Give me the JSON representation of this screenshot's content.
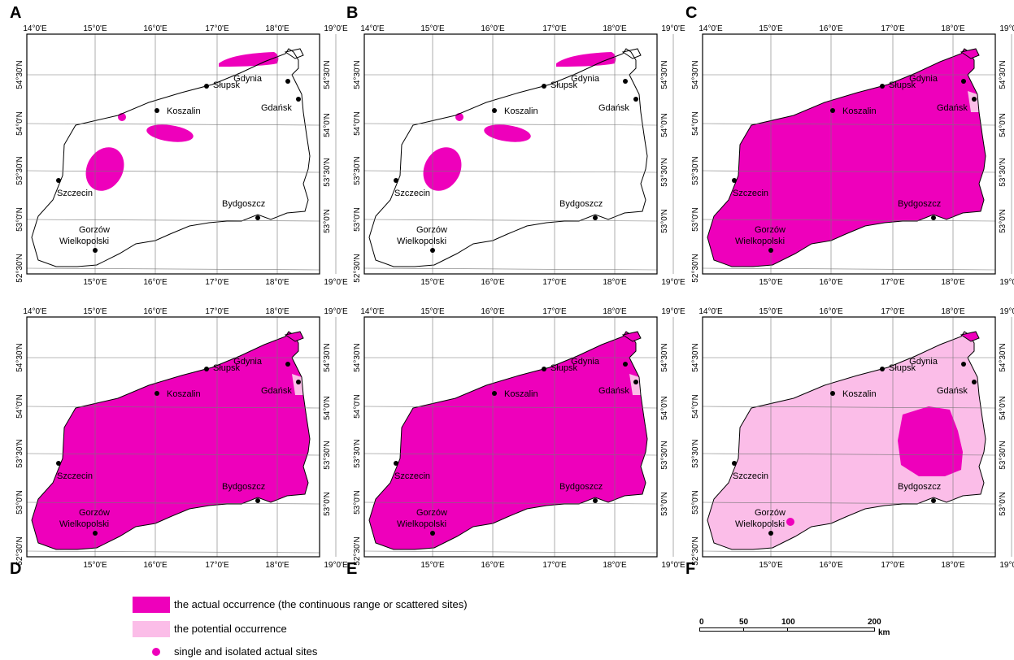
{
  "colors": {
    "actual": "#ee00bb",
    "potential": "#fbbde8",
    "outline": "#000000",
    "frame": "#000000",
    "grid": "#777777"
  },
  "panels": [
    {
      "letter": "A",
      "mode": "blobs"
    },
    {
      "letter": "B",
      "mode": "blobs"
    },
    {
      "letter": "C",
      "mode": "full"
    },
    {
      "letter": "D",
      "mode": "full"
    },
    {
      "letter": "E",
      "mode": "full"
    },
    {
      "letter": "F",
      "mode": "potential"
    }
  ],
  "lon_ticks": [
    "14°0'E",
    "15°0'E",
    "16°0'E",
    "17°0'E",
    "18°0'E",
    "19°0'E"
  ],
  "lat_ticks": [
    "54°30'N",
    "54°0'N",
    "53°30'N",
    "53°0'N",
    "52°30'N"
  ],
  "cities": [
    {
      "name": "Gdynia"
    },
    {
      "name": "Słupsk"
    },
    {
      "name": "Gdańsk"
    },
    {
      "name": "Koszalin"
    },
    {
      "name": "Szczecin"
    },
    {
      "name": "Bydgoszcz"
    },
    {
      "name": "Gorzów"
    },
    {
      "name": "Wielkopolski"
    }
  ],
  "legend": {
    "actual_label": "the actual occurrence (the continuous range or scattered sites)",
    "potential_label": "the potential occurrence",
    "single_label": "single and isolated actual sites"
  },
  "scale": {
    "labels": [
      "0",
      "50",
      "100",
      "200"
    ],
    "unit": "km"
  }
}
